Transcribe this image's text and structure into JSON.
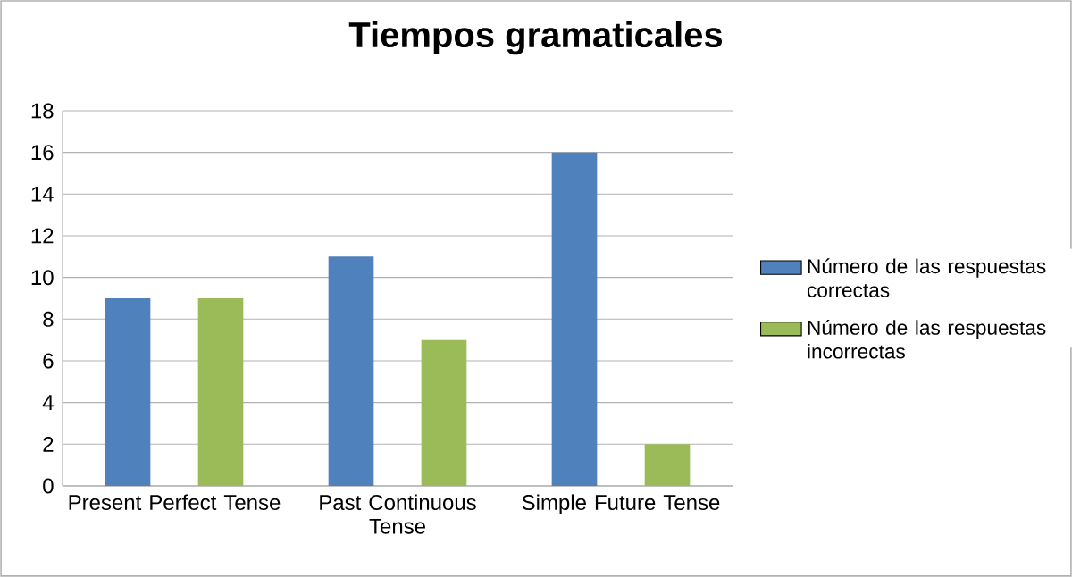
{
  "chart_data": {
    "type": "bar",
    "title": "Tiempos gramaticales",
    "categories": [
      "Present Perfect Tense",
      "Past Continuous Tense",
      "Simple Future Tense"
    ],
    "series": [
      {
        "name": "Número de las respuestas correctas",
        "color": "#4f81bd",
        "values": [
          9,
          11,
          16
        ]
      },
      {
        "name": "Número de las respuestas incorrectas",
        "color": "#9bbb59",
        "values": [
          9,
          7,
          2
        ]
      }
    ],
    "ylim": [
      0,
      18
    ],
    "yticks": [
      0,
      2,
      4,
      6,
      8,
      10,
      12,
      14,
      16,
      18
    ],
    "grid": "y",
    "legend": "right"
  }
}
